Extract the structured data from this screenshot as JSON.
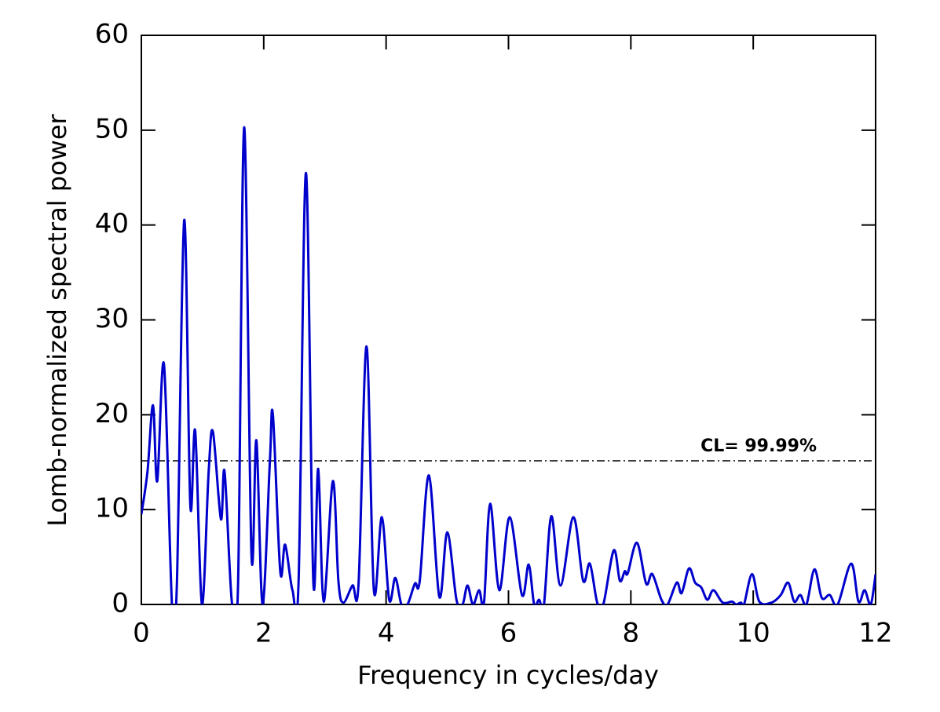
{
  "chart_data": {
    "type": "line",
    "xlabel": "Frequency in cycles/day",
    "ylabel": "Lomb-normalized spectral power",
    "xlim": [
      0,
      12
    ],
    "ylim": [
      0,
      60
    ],
    "xticks": [
      0,
      2,
      4,
      6,
      8,
      10,
      12
    ],
    "yticks": [
      0,
      10,
      20,
      30,
      40,
      50,
      60
    ],
    "threshold": {
      "value": 15.15,
      "label": "CL= 99.99%"
    },
    "series": [
      {
        "color": "#0000cc",
        "x": [
          0,
          0.1,
          0.19,
          0.26,
          0.37,
          0.5,
          0.58,
          0.7,
          0.8,
          0.88,
          0.99,
          1.1,
          1.17,
          1.3,
          1.36,
          1.48,
          1.58,
          1.68,
          1.8,
          1.88,
          1.98,
          2.1,
          2.15,
          2.27,
          2.35,
          2.47,
          2.57,
          2.69,
          2.81,
          2.89,
          2.98,
          3.13,
          3.22,
          3.3,
          3.45,
          3.55,
          3.68,
          3.8,
          3.93,
          4.05,
          4.15,
          4.25,
          4.35,
          4.47,
          4.55,
          4.7,
          4.87,
          5.0,
          5.15,
          5.25,
          5.33,
          5.42,
          5.52,
          5.6,
          5.7,
          5.85,
          6.02,
          6.22,
          6.33,
          6.42,
          6.5,
          6.58,
          6.7,
          6.85,
          7.06,
          7.22,
          7.33,
          7.45,
          7.55,
          7.72,
          7.82,
          7.9,
          7.95,
          8.1,
          8.25,
          8.35,
          8.5,
          8.6,
          8.75,
          8.83,
          8.95,
          9.05,
          9.15,
          9.25,
          9.35,
          9.5,
          9.65,
          9.72,
          9.8,
          9.85,
          9.98,
          10.1,
          10.3,
          10.45,
          10.57,
          10.67,
          10.77,
          10.87,
          11.0,
          11.12,
          11.25,
          11.38,
          11.6,
          11.72,
          11.82,
          11.92,
          12.0
        ],
        "values": [
          9.5,
          14,
          21,
          13,
          25.3,
          0,
          2,
          40.5,
          10.5,
          18.3,
          0,
          14,
          18.2,
          9,
          14,
          0.2,
          2,
          50.3,
          5.2,
          17.3,
          0,
          15,
          20,
          3.5,
          6.3,
          1.5,
          2.5,
          45.5,
          2.5,
          14.3,
          0.3,
          13,
          2.5,
          0.2,
          2,
          2.2,
          27.2,
          1.5,
          9.2,
          0.5,
          2.8,
          0,
          0,
          2.2,
          2.5,
          13.6,
          0.8,
          7.6,
          0.5,
          0,
          2,
          0,
          1.5,
          0.2,
          10.6,
          1.5,
          9.2,
          1,
          4.2,
          0,
          0.5,
          0,
          9.3,
          2,
          9.2,
          2.5,
          4.3,
          0.2,
          0,
          5.7,
          2.5,
          3.5,
          3.3,
          6.5,
          2.2,
          3.2,
          0.5,
          0,
          2.3,
          1.2,
          3.8,
          2.3,
          1.8,
          0.5,
          1.5,
          0.2,
          0.3,
          0,
          0.2,
          0,
          3.2,
          0.3,
          0.2,
          1,
          2.3,
          0.3,
          1,
          0,
          3.7,
          0.7,
          1,
          0,
          4.3,
          0.3,
          1.5,
          0,
          3.2
        ]
      }
    ]
  }
}
